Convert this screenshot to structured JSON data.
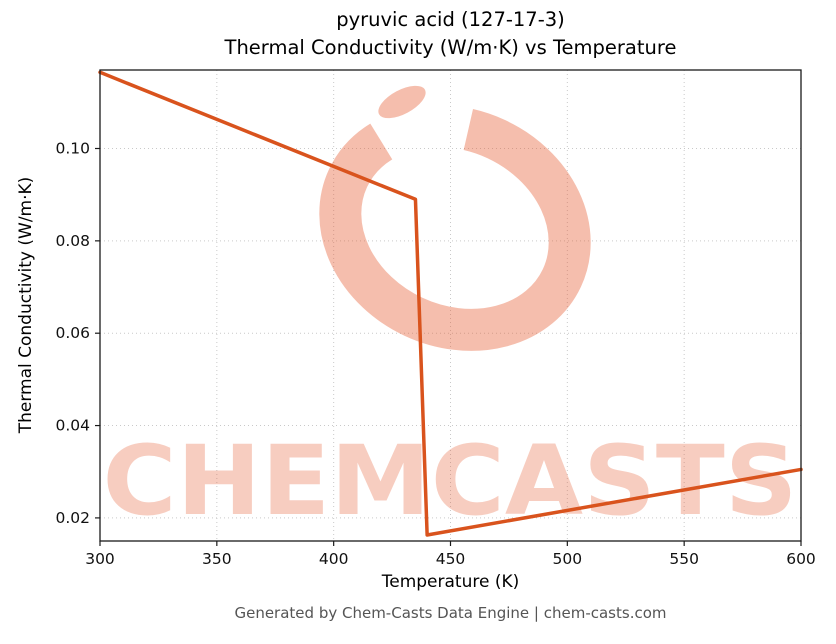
{
  "title": {
    "line1": "pyruvic acid (127-17-3)",
    "line2": "Thermal Conductivity (W/m·K) vs Temperature"
  },
  "footer": "Generated by Chem-Casts Data Engine | chem-casts.com",
  "watermark": {
    "text": "CHEMCASTS",
    "color": "#e65c33"
  },
  "chart_data": {
    "type": "line",
    "title": "pyruvic acid (127-17-3) Thermal Conductivity (W/m·K) vs Temperature",
    "xlabel": "Temperature (K)",
    "ylabel": "Thermal Conductivity (W/m·K)",
    "xlim": [
      300,
      600
    ],
    "ylim": [
      0.015,
      0.117
    ],
    "xticks": [
      300,
      350,
      400,
      450,
      500,
      550,
      600
    ],
    "yticks": [
      0.02,
      0.04,
      0.06,
      0.08,
      0.1
    ],
    "grid": true,
    "legend": false,
    "line_color": "#d9531d",
    "line_width": 3.5,
    "series": [
      {
        "name": "thermal-conductivity",
        "points": [
          {
            "x": 300,
            "y": 0.1165
          },
          {
            "x": 435,
            "y": 0.089
          },
          {
            "x": 440,
            "y": 0.0163
          },
          {
            "x": 600,
            "y": 0.0305
          }
        ]
      }
    ]
  }
}
